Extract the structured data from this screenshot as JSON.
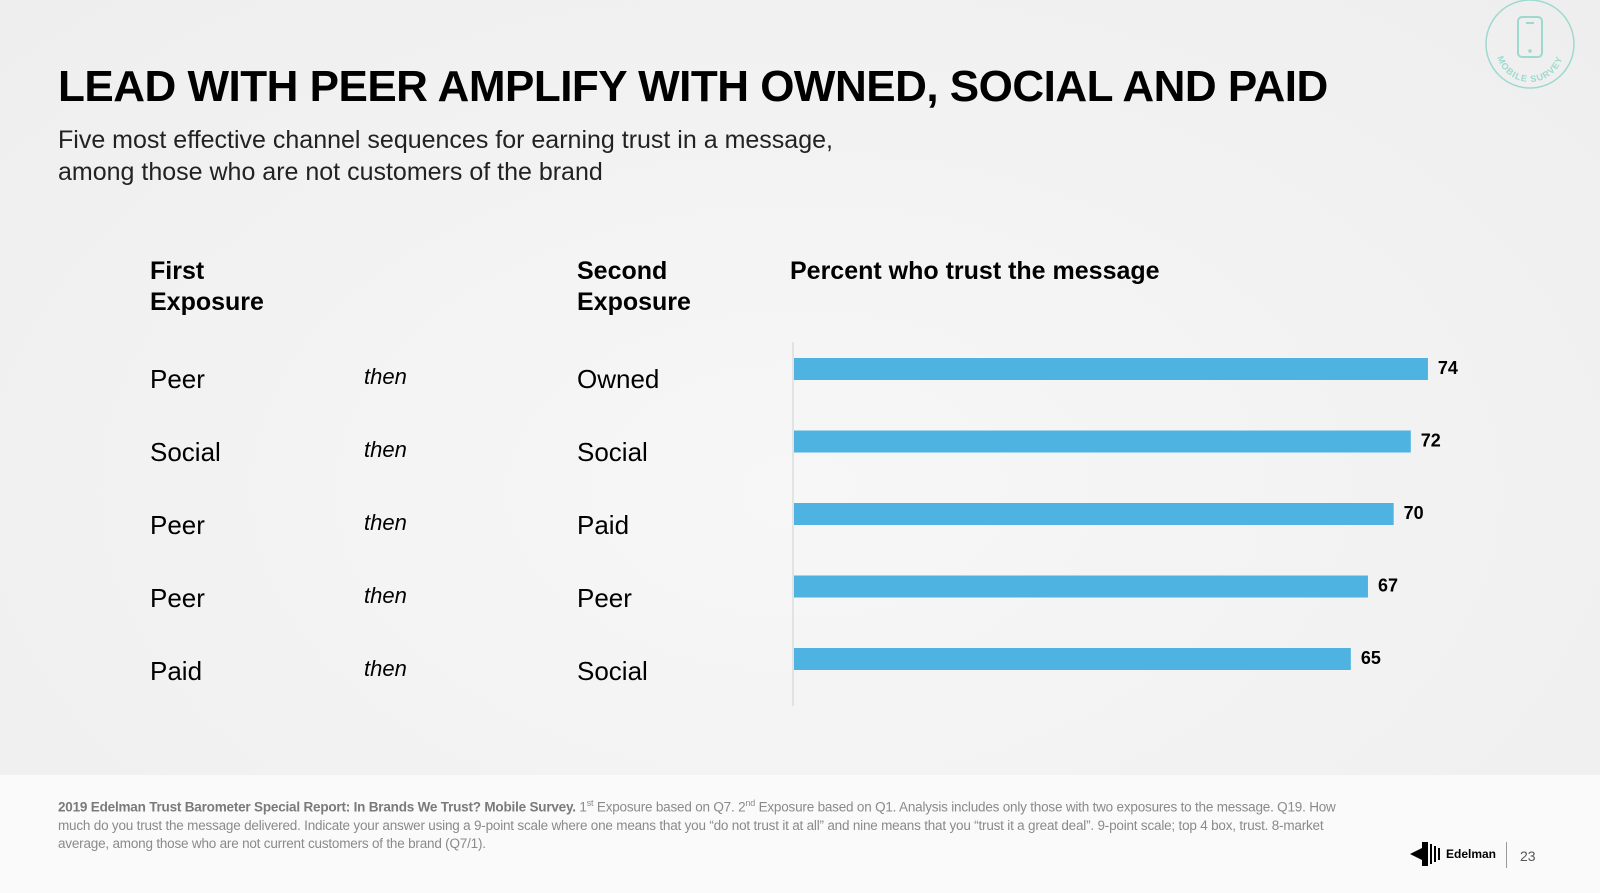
{
  "title": "LEAD WITH PEER AMPLIFY WITH OWNED, SOCIAL AND PAID",
  "subtitle_lines": [
    "Five most effective channel sequences for earning trust in a message,",
    "among those who are not customers of the brand"
  ],
  "columns": {
    "first": [
      "First",
      "Exposure"
    ],
    "second": [
      "Second",
      "Exposure"
    ],
    "chart": "Percent who trust the message"
  },
  "connector": "then",
  "rows": [
    {
      "first": "Peer",
      "second": "Owned"
    },
    {
      "first": "Social",
      "second": "Social"
    },
    {
      "first": "Peer",
      "second": "Paid"
    },
    {
      "first": "Peer",
      "second": "Peer"
    },
    {
      "first": "Paid",
      "second": "Social"
    }
  ],
  "chart_data": {
    "type": "bar",
    "orientation": "horizontal",
    "categories": [
      "Peer then Owned",
      "Social then Social",
      "Peer then Paid",
      "Peer then Peer",
      "Paid then Social"
    ],
    "values": [
      74,
      72,
      70,
      67,
      65
    ],
    "title": "Percent who trust the message",
    "xlim": [
      0,
      75
    ],
    "grid": false,
    "data_labels": true,
    "bar_color": "#4EB3E0"
  },
  "footer": {
    "bold": "2019 Edelman Trust Barometer Special Report: In Brands We Trust? Mobile Survey.",
    "sup1": "st",
    "text1": " Exposure based on Q7. 2",
    "sup2": "nd",
    "text2": " Exposure based on Q1. Analysis includes only those with two exposures to the message. Q19. How much do you trust the message delivered. Indicate your answer using a 9-point scale where one means that you “do not trust it at all” and nine means that you “trust it a great deal”. 9-point scale; top 4 box, trust. 8-market average, among those who are not current customers of the brand (Q7/1).",
    "lead": "1"
  },
  "badge_text": "MOBILE SURVEY",
  "logo_text": "Edelman",
  "page_number": "23",
  "colors": {
    "accent": "#4EB3E0",
    "badge": "#9ed9cf"
  }
}
